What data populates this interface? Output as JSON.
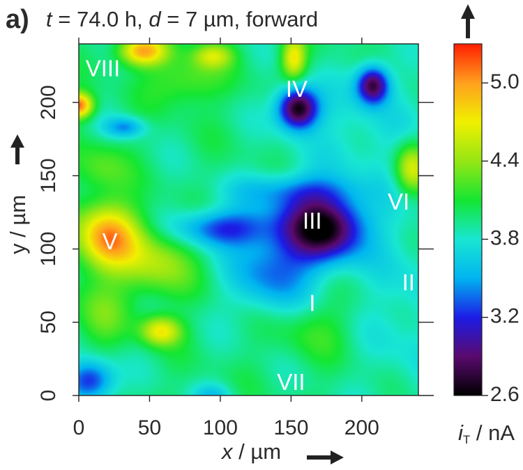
{
  "panel_label": "a)",
  "title_parts": {
    "t_sym": "t",
    "t_val": " = 74.0 h, ",
    "d_sym": "d",
    "d_val": " = 7 µm, forward"
  },
  "xaxis": {
    "sym": "x",
    "unit": " / µm"
  },
  "yaxis": {
    "label": "y / µm"
  },
  "colorbar_label": {
    "sym": "i",
    "sub": "T",
    "unit": " / nA"
  },
  "chart_data": {
    "type": "heatmap",
    "x_range": [
      0,
      240
    ],
    "y_range": [
      0,
      240
    ],
    "x_ticks": [
      0,
      50,
      100,
      150,
      200
    ],
    "y_ticks": [
      0,
      50,
      100,
      150,
      200
    ],
    "x_tick_labels": [
      "0",
      "50",
      "100",
      "150",
      "200"
    ],
    "y_tick_labels": [
      "0",
      "50",
      "100",
      "150",
      "200"
    ],
    "color_range": [
      2.6,
      5.3
    ],
    "colorbar_ticks": [
      2.6,
      3.2,
      3.8,
      4.4,
      5.0
    ],
    "colorbar_tick_labels": [
      "2.6",
      "3.2",
      "3.8",
      "4.4",
      "5.0"
    ],
    "colormap": [
      "#000000",
      "#5a0a6e",
      "#1c1ce6",
      "#00b4f0",
      "#19e6d2",
      "#14e632",
      "#96e614",
      "#f0f000",
      "#ffa01e",
      "#ff1e00"
    ],
    "background_level": 3.95,
    "features": [
      {
        "x": 175,
        "y": 115,
        "sx": 20,
        "sy": 16,
        "amp": -1.15
      },
      {
        "x": 150,
        "y": 110,
        "sx": 24,
        "sy": 22,
        "amp": -0.35
      },
      {
        "x": 100,
        "y": 114,
        "sx": 22,
        "sy": 9,
        "amp": -0.7
      },
      {
        "x": 135,
        "y": 80,
        "sx": 20,
        "sy": 18,
        "amp": -0.45
      },
      {
        "x": 150,
        "y": 140,
        "sx": 30,
        "sy": 8,
        "amp": -0.35
      },
      {
        "x": 155,
        "y": 196,
        "sx": 10,
        "sy": 10,
        "amp": -1.35
      },
      {
        "x": 208,
        "y": 212,
        "sx": 8,
        "sy": 9,
        "amp": -1.15
      },
      {
        "x": 200,
        "y": 180,
        "sx": 30,
        "sy": 28,
        "amp": -0.2
      },
      {
        "x": 33,
        "y": 183,
        "sx": 10,
        "sy": 5,
        "amp": -0.5
      },
      {
        "x": 8,
        "y": 10,
        "sx": 12,
        "sy": 10,
        "amp": -0.8
      },
      {
        "x": 95,
        "y": 0,
        "sx": 10,
        "sy": 6,
        "amp": -0.3
      },
      {
        "x": 235,
        "y": 60,
        "sx": 25,
        "sy": 50,
        "amp": -0.2
      },
      {
        "x": 20,
        "y": 108,
        "sx": 16,
        "sy": 16,
        "amp": 1.05
      },
      {
        "x": 55,
        "y": 90,
        "sx": 18,
        "sy": 16,
        "amp": 0.5
      },
      {
        "x": 58,
        "y": 44,
        "sx": 10,
        "sy": 7,
        "amp": 0.75
      },
      {
        "x": 15,
        "y": 55,
        "sx": 14,
        "sy": 16,
        "amp": 0.3
      },
      {
        "x": 0,
        "y": 198,
        "sx": 7,
        "sy": 6,
        "amp": 1.2
      },
      {
        "x": 45,
        "y": 235,
        "sx": 12,
        "sy": 7,
        "amp": 1.0
      },
      {
        "x": 95,
        "y": 232,
        "sx": 10,
        "sy": 6,
        "amp": 0.55
      },
      {
        "x": 152,
        "y": 230,
        "sx": 6,
        "sy": 10,
        "amp": 0.8
      },
      {
        "x": 235,
        "y": 155,
        "sx": 8,
        "sy": 12,
        "amp": 0.7
      },
      {
        "x": 15,
        "y": 155,
        "sx": 14,
        "sy": 12,
        "amp": 0.3
      },
      {
        "x": 75,
        "y": 215,
        "sx": 18,
        "sy": 12,
        "amp": 0.35
      },
      {
        "x": 165,
        "y": 45,
        "sx": 20,
        "sy": 14,
        "amp": 0.2
      }
    ],
    "annotations": [
      {
        "text": "I",
        "x": 165,
        "y": 62
      },
      {
        "text": "II",
        "x": 233,
        "y": 76
      },
      {
        "text": "III",
        "x": 165,
        "y": 118
      },
      {
        "text": "IV",
        "x": 154,
        "y": 208
      },
      {
        "text": "V",
        "x": 22,
        "y": 104
      },
      {
        "text": "VI",
        "x": 226,
        "y": 131
      },
      {
        "text": "VII",
        "x": 150,
        "y": 8
      },
      {
        "text": "VIII",
        "x": 17,
        "y": 222
      }
    ]
  }
}
